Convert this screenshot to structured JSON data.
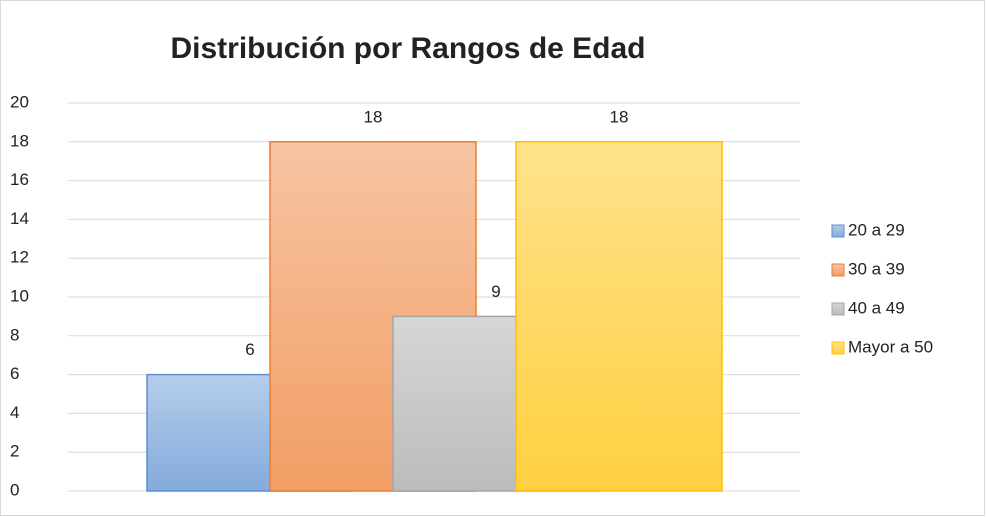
{
  "chart_data": {
    "type": "bar",
    "title": "Distribución por Rangos de Edad",
    "categories": [
      null
    ],
    "series": [
      {
        "name": "20 a 29",
        "color": "#5b8fd0",
        "values": [
          6
        ]
      },
      {
        "name": "30 a 39",
        "color": "#ed7d31",
        "values": [
          18
        ]
      },
      {
        "name": "40 a 49",
        "color": "#a5a5a5",
        "values": [
          9
        ]
      },
      {
        "name": "Mayor a 50",
        "color": "#ffc000",
        "values": [
          18
        ]
      }
    ],
    "ylim": [
      0,
      20
    ],
    "yticks": [
      0,
      2,
      4,
      6,
      8,
      10,
      12,
      14,
      16,
      18,
      20
    ],
    "grid": true,
    "legend": "right"
  }
}
